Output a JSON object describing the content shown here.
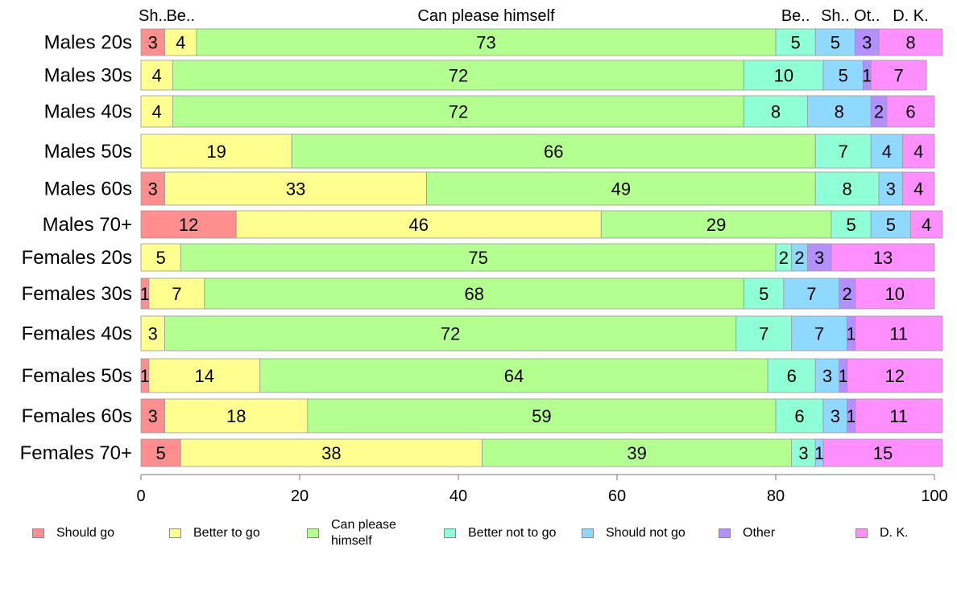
{
  "chart_data": {
    "type": "bar",
    "orientation": "horizontal",
    "stacked": true,
    "categories": [
      "Males 20s",
      "Males 30s",
      "Males 40s",
      "Males 50s",
      "Males 60s",
      "Males 70+",
      "Females 20s",
      "Females 30s",
      "Females 40s",
      "Females 50s",
      "Females 60s",
      "Females 70+"
    ],
    "series": [
      {
        "name": "Should go",
        "color": "#ff8f8f",
        "values": [
          3,
          0,
          0,
          0,
          3,
          12,
          0,
          1,
          0,
          1,
          3,
          5
        ]
      },
      {
        "name": "Better to go",
        "color": "#ffff8f",
        "values": [
          4,
          4,
          4,
          19,
          33,
          46,
          5,
          7,
          3,
          14,
          18,
          38
        ]
      },
      {
        "name": "Can please himself",
        "color": "#b3ff8f",
        "values": [
          73,
          72,
          72,
          66,
          49,
          29,
          75,
          68,
          72,
          64,
          59,
          39
        ]
      },
      {
        "name": "Better not to go",
        "color": "#8fffd8",
        "values": [
          5,
          10,
          8,
          7,
          8,
          5,
          2,
          5,
          7,
          6,
          6,
          3
        ]
      },
      {
        "name": "Should not go",
        "color": "#8fd8ff",
        "values": [
          5,
          5,
          8,
          4,
          3,
          5,
          2,
          7,
          7,
          3,
          3,
          1
        ]
      },
      {
        "name": "Other",
        "color": "#b38fff",
        "values": [
          3,
          1,
          2,
          0,
          0,
          0,
          3,
          2,
          1,
          1,
          1,
          0
        ]
      },
      {
        "name": "D. K.",
        "color": "#ff8fff",
        "values": [
          8,
          7,
          6,
          4,
          4,
          4,
          13,
          10,
          11,
          12,
          11,
          15
        ]
      }
    ],
    "top_labels": [
      "Sh..",
      "Be..",
      "Can please himself",
      "Be..",
      "Sh..",
      "Ot..",
      "D. K."
    ],
    "xlim": [
      0,
      100
    ],
    "xticks": [
      0,
      20,
      40,
      60,
      80,
      100
    ],
    "xlabel": "",
    "ylabel": "",
    "title": "",
    "grid": false,
    "legend_position": "bottom"
  },
  "legend": {
    "items": [
      "Should go",
      "Better to go",
      "Can please himself",
      "Better not to go",
      "Should not go",
      "Other",
      "D. K."
    ]
  }
}
